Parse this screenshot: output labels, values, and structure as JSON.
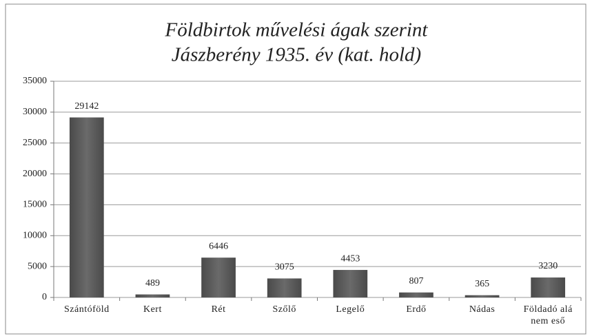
{
  "chart_data": {
    "type": "bar",
    "title": "Földbirtok művelési ágak szerint",
    "subtitle": "Jászberény 1935. év (kat. hold)",
    "categories": [
      "Szántóföld",
      "Kert",
      "Rét",
      "Szőlő",
      "Legelő",
      "Erdő",
      "Nádas",
      "Földadó alá nem eső"
    ],
    "values": [
      29142,
      489,
      6446,
      3075,
      4453,
      807,
      365,
      3230
    ],
    "color": "#6a6a6a",
    "ylim": [
      0,
      35000
    ],
    "yticks": [
      0,
      5000,
      10000,
      15000,
      20000,
      25000,
      30000,
      35000
    ],
    "grid": true
  }
}
